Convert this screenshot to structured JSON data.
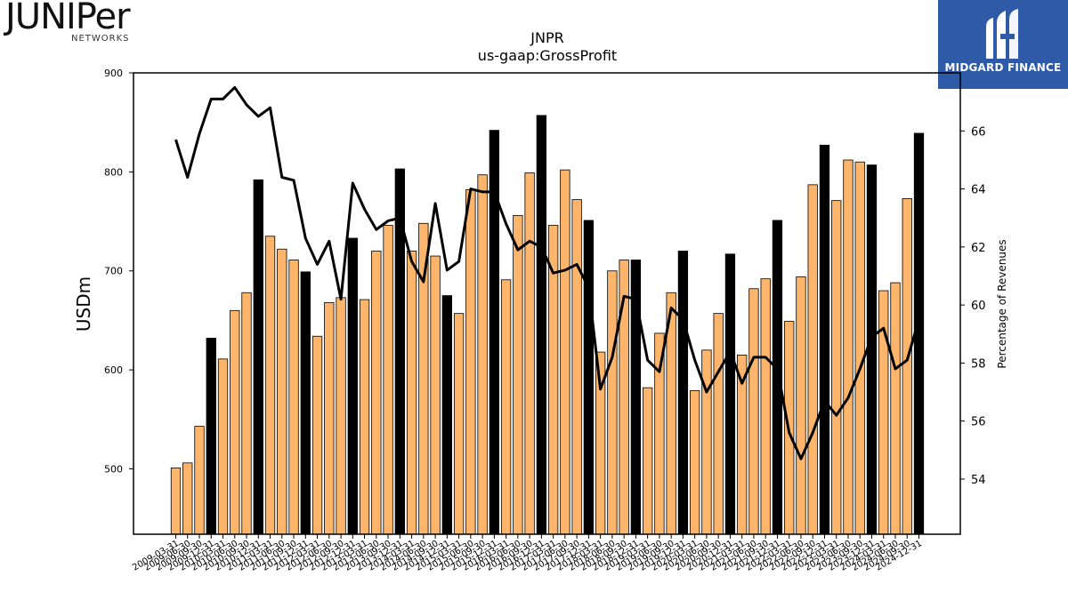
{
  "logos": {
    "left_word": "JUNIPer",
    "left_sub": "NETWORKS",
    "right_brand": "MIDGARD FINANCE",
    "right_color": "#2f5aa8"
  },
  "chart_data": {
    "type": "bar",
    "title": "JNPR",
    "subtitle": "us-gaap:GrossProfit",
    "ylabel": "USDm",
    "y2label": "Percentage of Revenues",
    "ylim": [
      434,
      900
    ],
    "y2lim": [
      52.1,
      68.0
    ],
    "yticks": [
      500,
      600,
      700,
      800,
      900
    ],
    "y2ticks": [
      54,
      56,
      58,
      60,
      62,
      64,
      66
    ],
    "colors": {
      "quarter": "#fdb46b",
      "annual": "#000000",
      "line": "#000000"
    },
    "categories": [
      "2009-03-31",
      "2009-06-30",
      "2009-09-30",
      "2009-12-31",
      "2010-03-31",
      "2010-06-30",
      "2010-09-30",
      "2010-12-31",
      "2011-03-31",
      "2011-06-30",
      "2011-09-30",
      "2011-12-31",
      "2012-03-31",
      "2012-06-30",
      "2012-09-30",
      "2012-12-31",
      "2013-03-31",
      "2013-06-30",
      "2013-09-30",
      "2013-12-31",
      "2014-03-31",
      "2014-06-30",
      "2014-09-30",
      "2014-12-31",
      "2015-03-31",
      "2015-06-30",
      "2015-09-30",
      "2015-12-31",
      "2016-03-31",
      "2016-06-30",
      "2016-09-30",
      "2016-12-31",
      "2017-03-31",
      "2017-06-30",
      "2017-09-30",
      "2017-12-31",
      "2018-03-31",
      "2018-06-30",
      "2018-09-30",
      "2018-12-31",
      "2019-03-31",
      "2019-06-30",
      "2019-09-30",
      "2019-12-31",
      "2020-03-31",
      "2020-06-30",
      "2020-09-30",
      "2020-12-31",
      "2021-03-31",
      "2021-06-30",
      "2021-09-30",
      "2021-12-31",
      "2022-03-31",
      "2022-06-30",
      "2022-09-30",
      "2022-12-31",
      "2023-03-31",
      "2023-06-30",
      "2023-09-30",
      "2023-12-31",
      "2024-03-31",
      "2024-06-30",
      "2024-09-30",
      "2024-12-31"
    ],
    "xtick_labels": [
      "2009-03-31",
      "2009-06-30",
      "2009-09-30",
      "2009-12-31",
      "2010-03-31",
      "2010-06-30",
      "2010-09-30",
      "2010-12-31",
      "2011-03-31",
      "2011-06-30",
      "2011-09-30",
      "2011-12-31",
      "2012-03-31",
      "2012-06-30",
      "2012-09-30",
      "2012-12-31",
      "2013-03-31",
      "2013-06-30",
      "2013-09-30",
      "2013-12-31",
      "2014-03-31",
      "2014-06-30",
      "2014-09-30",
      "2014-12-31",
      "2015-03-31",
      "2015-06-30",
      "2015-09-30",
      "2015-12-31",
      "2016-03-31",
      "2016-06-30",
      "2016-09-30",
      "2016-12-31",
      "2017-03-31",
      "2017-06-30",
      "2017-09-30",
      "2017-12-31",
      "2018-03-31",
      "2018-06-30",
      "2018-09-30",
      "2018-12-31",
      "2019-03-31",
      "2019-06-30",
      "2019-09-30",
      "2019-12-31",
      "2020-03-31",
      "2020-06-30",
      "2020-09-30",
      "2020-12-31",
      "2021-03-31",
      "2021-06-30",
      "2021-09-30",
      "2021-12-31",
      "2022-03-31",
      "2022-06-30",
      "2022-09-30",
      "2022-12-31",
      "2023-03-31",
      "2023-06-30",
      "2023-09-30",
      "2023-12-31",
      "2024-03-31",
      "2024-06-30",
      "2024-09-30",
      "2024-12-31"
    ],
    "values": [
      501,
      506,
      543,
      632,
      611,
      660,
      678,
      792,
      735,
      722,
      711,
      699,
      634,
      668,
      673,
      733,
      671,
      720,
      746,
      803,
      720,
      748,
      715,
      675,
      657,
      782,
      797,
      842,
      691,
      756,
      799,
      857,
      746,
      802,
      772,
      751,
      618,
      700,
      711,
      711,
      582,
      637,
      678,
      720,
      579,
      620,
      657,
      717,
      615,
      682,
      692,
      751,
      649,
      694,
      787,
      827,
      771,
      812,
      810,
      807,
      680,
      688,
      773,
      839
    ],
    "annual_flags": [
      0,
      0,
      0,
      1,
      0,
      0,
      0,
      1,
      0,
      0,
      0,
      1,
      0,
      0,
      0,
      1,
      0,
      0,
      0,
      1,
      0,
      0,
      0,
      1,
      0,
      0,
      0,
      1,
      0,
      0,
      0,
      1,
      0,
      0,
      0,
      1,
      0,
      0,
      0,
      1,
      0,
      0,
      0,
      1,
      0,
      0,
      0,
      1,
      0,
      0,
      0,
      1,
      0,
      0,
      0,
      1,
      0,
      0,
      0,
      1,
      0,
      0,
      0,
      1
    ],
    "margin_pct": [
      65.7,
      64.4,
      65.9,
      67.1,
      67.1,
      67.5,
      66.9,
      66.5,
      66.8,
      64.4,
      64.3,
      62.3,
      61.4,
      62.2,
      60.2,
      64.2,
      63.3,
      62.6,
      62.9,
      63.0,
      61.5,
      60.8,
      63.5,
      61.2,
      61.5,
      64.0,
      63.9,
      63.9,
      62.8,
      61.9,
      62.2,
      62.0,
      61.1,
      61.2,
      61.4,
      60.6,
      57.1,
      58.2,
      60.3,
      60.2,
      58.1,
      57.7,
      59.9,
      59.5,
      58.1,
      57.0,
      57.7,
      58.4,
      57.3,
      58.2,
      58.2,
      57.8,
      55.6,
      54.7,
      55.6,
      56.7,
      56.2,
      56.8,
      57.8,
      58.9,
      59.2,
      57.8,
      58.1,
      59.5
    ]
  }
}
